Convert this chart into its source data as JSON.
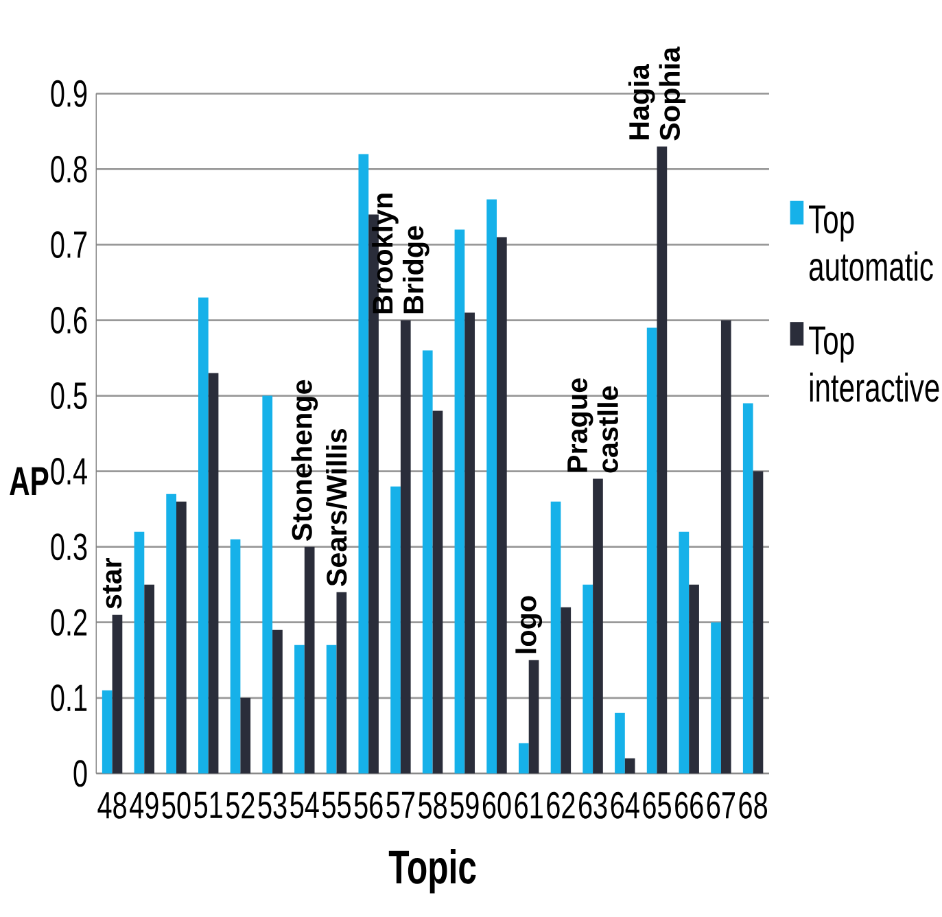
{
  "chart_data": {
    "type": "bar",
    "xlabel": "Topic",
    "ylabel": "AP",
    "categories": [
      "48",
      "49",
      "50",
      "51",
      "52",
      "53",
      "54",
      "55",
      "56",
      "57",
      "58",
      "59",
      "60",
      "61",
      "62",
      "63",
      "64",
      "65",
      "66",
      "67",
      "68"
    ],
    "series": [
      {
        "name": "Top automatic",
        "color": "#16b1e9",
        "values": [
          0.11,
          0.32,
          0.37,
          0.63,
          0.31,
          0.5,
          0.17,
          0.17,
          0.82,
          0.38,
          0.56,
          0.72,
          0.76,
          0.04,
          0.36,
          0.25,
          0.08,
          0.59,
          0.32,
          0.2,
          0.49
        ]
      },
      {
        "name": "Top interactive",
        "color": "#2a2d3a",
        "values": [
          0.21,
          0.25,
          0.36,
          0.53,
          0.1,
          0.19,
          0.3,
          0.24,
          0.74,
          0.6,
          0.48,
          0.61,
          0.71,
          0.15,
          0.22,
          0.39,
          0.02,
          0.83,
          0.25,
          0.6,
          0.4
        ]
      }
    ],
    "ylim": [
      0,
      0.9
    ],
    "yticks": [
      0,
      0.1,
      0.2,
      0.3,
      0.4,
      0.5,
      0.6,
      0.7,
      0.8,
      0.9
    ],
    "grid": "y",
    "legend": "right",
    "annotations": [
      {
        "text": "star",
        "x": "48",
        "y": 0.21
      },
      {
        "text": "Stonehenge",
        "x": "54",
        "y": 0.3
      },
      {
        "text": "Sears/Willis",
        "x": "55",
        "y": 0.24
      },
      {
        "text": "Brooklyn Bridge",
        "x": "57",
        "y": 0.6
      },
      {
        "text": "logo",
        "x": "61",
        "y": 0.15
      },
      {
        "text": "Prague castlle",
        "x": "63",
        "y": 0.39
      },
      {
        "text": "Hagia Sophia",
        "x": "65",
        "y": 0.83
      }
    ]
  }
}
